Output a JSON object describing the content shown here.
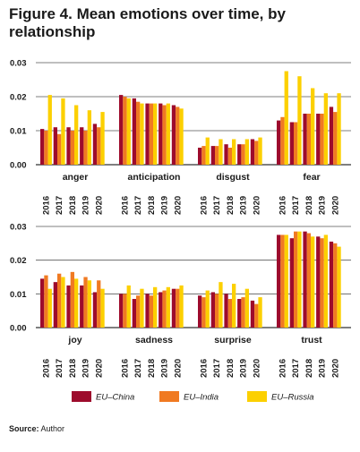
{
  "title_prefix": "Figure 4.",
  "title_rest": "Mean emotions over time, by relationship",
  "source_label": "Source:",
  "source_value": "Author",
  "chart_data": {
    "type": "bar",
    "years": [
      "2016",
      "2017",
      "2018",
      "2019",
      "2020"
    ],
    "yticks": [
      "0.00",
      "0.01",
      "0.02",
      "0.03"
    ],
    "ylim": [
      0,
      0.03
    ],
    "grid": true,
    "legend_position": "bottom",
    "series": [
      {
        "name": "EU–China",
        "color": "#9d0b2c"
      },
      {
        "name": "EU–India",
        "color": "#f07a22"
      },
      {
        "name": "EU–Russia",
        "color": "#fcd000"
      }
    ],
    "panels": [
      {
        "category": "anger",
        "values": [
          [
            0.0105,
            0.011,
            0.011,
            0.011,
            0.012
          ],
          [
            0.01,
            0.009,
            0.01,
            0.01,
            0.011
          ],
          [
            0.0205,
            0.0195,
            0.0175,
            0.016,
            0.0155
          ]
        ]
      },
      {
        "category": "anticipation",
        "values": [
          [
            0.0205,
            0.0195,
            0.018,
            0.018,
            0.0175
          ],
          [
            0.02,
            0.0185,
            0.018,
            0.0175,
            0.017
          ],
          [
            0.0195,
            0.018,
            0.018,
            0.018,
            0.0165
          ]
        ]
      },
      {
        "category": "disgust",
        "values": [
          [
            0.005,
            0.0055,
            0.006,
            0.006,
            0.0075
          ],
          [
            0.0055,
            0.0055,
            0.005,
            0.006,
            0.007
          ],
          [
            0.008,
            0.0075,
            0.0075,
            0.0075,
            0.008
          ]
        ]
      },
      {
        "category": "fear",
        "values": [
          [
            0.013,
            0.0125,
            0.015,
            0.015,
            0.017
          ],
          [
            0.014,
            0.0125,
            0.015,
            0.015,
            0.0155
          ],
          [
            0.0275,
            0.026,
            0.0225,
            0.021,
            0.021
          ]
        ]
      },
      {
        "category": "joy",
        "values": [
          [
            0.0145,
            0.0135,
            0.0125,
            0.0125,
            0.0105
          ],
          [
            0.0155,
            0.016,
            0.0165,
            0.015,
            0.014
          ],
          [
            0.0115,
            0.015,
            0.0145,
            0.014,
            0.0115
          ]
        ]
      },
      {
        "category": "sadness",
        "values": [
          [
            0.01,
            0.0085,
            0.01,
            0.0105,
            0.0115
          ],
          [
            0.01,
            0.0095,
            0.0095,
            0.011,
            0.0115
          ],
          [
            0.0125,
            0.0115,
            0.012,
            0.012,
            0.0125
          ]
        ]
      },
      {
        "category": "surprise",
        "values": [
          [
            0.0095,
            0.0105,
            0.01,
            0.0085,
            0.008
          ],
          [
            0.009,
            0.01,
            0.0085,
            0.009,
            0.007
          ],
          [
            0.011,
            0.0135,
            0.013,
            0.0115,
            0.009
          ]
        ]
      },
      {
        "category": "trust",
        "values": [
          [
            0.0275,
            0.0265,
            0.0285,
            0.027,
            0.0255
          ],
          [
            0.0275,
            0.0285,
            0.028,
            0.0265,
            0.025
          ],
          [
            0.0275,
            0.0285,
            0.027,
            0.0275,
            0.024
          ]
        ]
      }
    ]
  }
}
